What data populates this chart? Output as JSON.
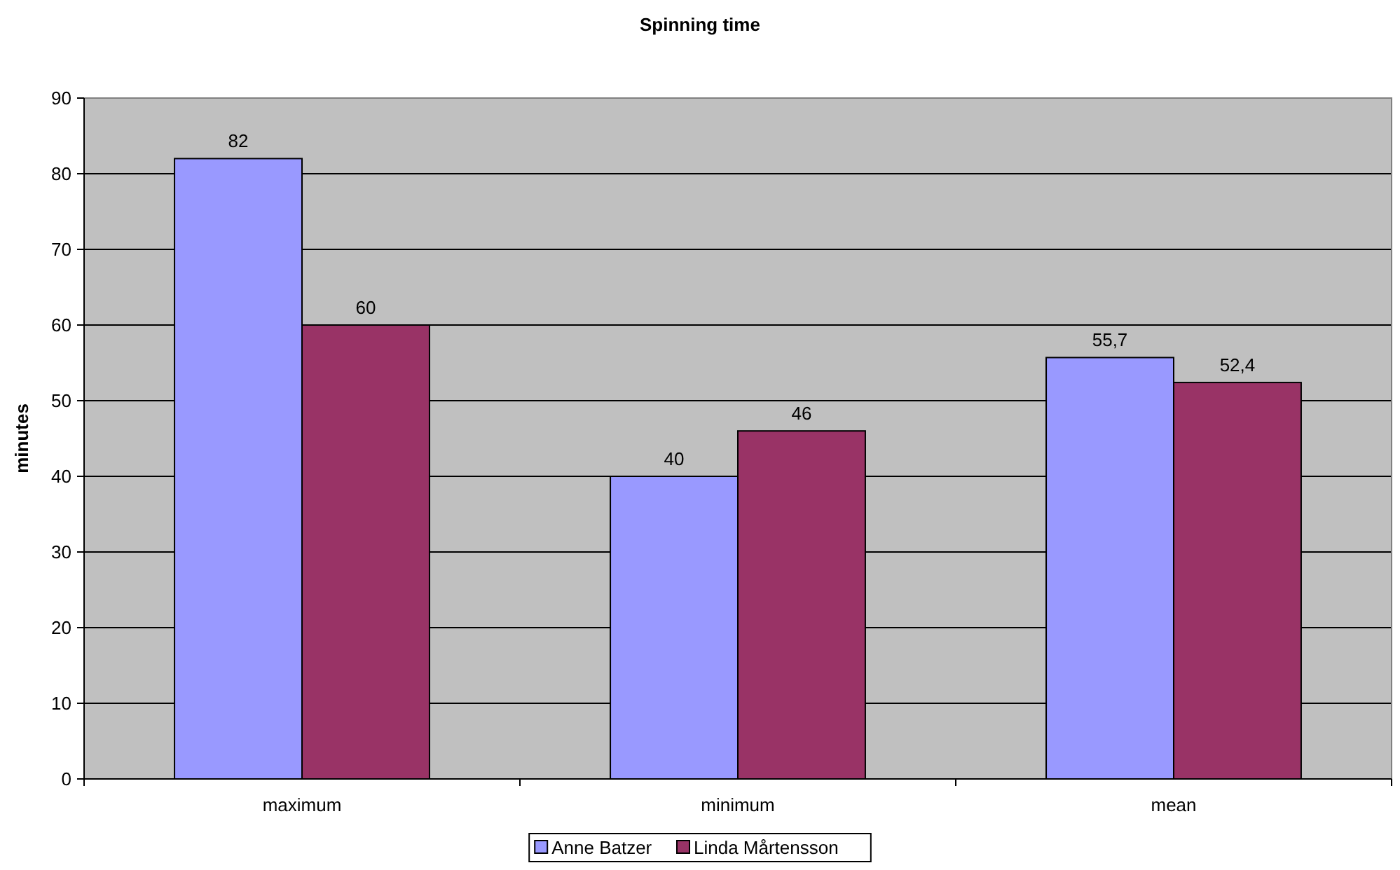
{
  "chart_data": {
    "type": "bar",
    "title": "Spinning time",
    "ylabel": "minutes",
    "categories": [
      "maximum",
      "minimum",
      "mean"
    ],
    "series": [
      {
        "name": "Anne Batzer",
        "color": "#9999ff",
        "values": [
          82,
          40,
          55.7
        ],
        "value_labels": [
          "82",
          "40",
          "55,7"
        ]
      },
      {
        "name": "Linda Mårtensson",
        "color": "#993366",
        "values": [
          60,
          46,
          52.4
        ],
        "value_labels": [
          "60",
          "46",
          "52,4"
        ]
      }
    ],
    "ylim": [
      0,
      90
    ],
    "yticks": [
      0,
      10,
      20,
      30,
      40,
      50,
      60,
      70,
      80,
      90
    ],
    "grid": "y",
    "legend": "bottom"
  }
}
